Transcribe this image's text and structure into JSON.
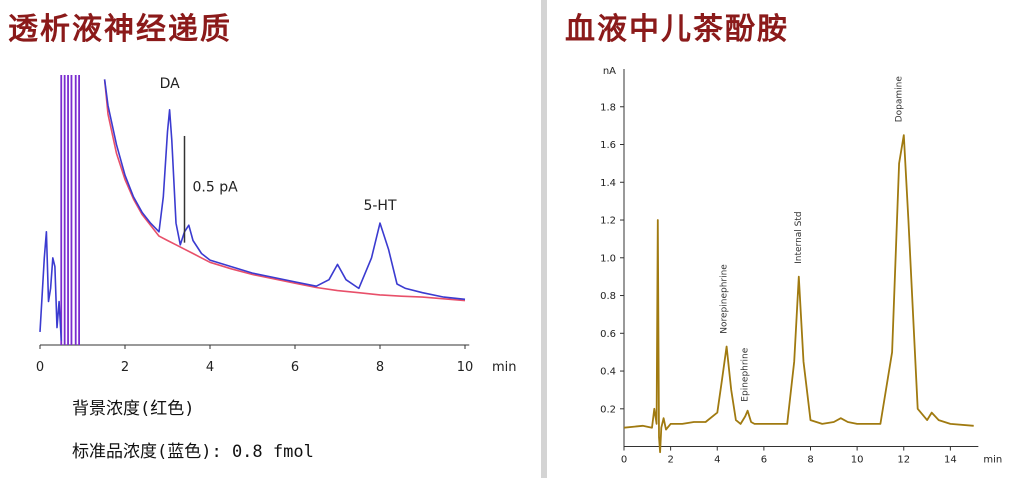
{
  "left_panel": {
    "title": "透析液神经递质",
    "caption_background": "背景浓度(红色)",
    "caption_standard": "标准品浓度(蓝色): 0.8 fmol"
  },
  "right_panel": {
    "title": "血液中儿茶酚胺"
  },
  "colors": {
    "title": "#8b1a1a",
    "background_trace": "#e8506a",
    "standard_trace": "#3b3bd0",
    "overload_lines": "#7a2ccf",
    "chromatogram": "#a07a10",
    "axis": "#333333"
  },
  "chart_data": [
    {
      "type": "line",
      "xlabel": "min",
      "x_ticks": [
        0,
        2,
        4,
        6,
        8,
        10
      ],
      "xlim": [
        0,
        10.4
      ],
      "ylim": [
        0,
        6.2
      ],
      "scale_bar": {
        "label": "0.5 pA",
        "x": 3.4,
        "y_bottom": 2.35,
        "y_top": 4.8
      },
      "peak_labels": [
        {
          "text": "DA",
          "x": 3.05,
          "y": 5.9
        },
        {
          "text": "5-HT",
          "x": 8.0,
          "y": 3.1
        }
      ],
      "saturated_x": [
        0.5,
        0.58,
        0.66,
        0.74,
        0.84,
        0.92
      ],
      "series": [
        {
          "name": "背景浓度(红色)",
          "color": "#e8506a",
          "x": [
            1.52,
            1.6,
            1.8,
            2.0,
            2.2,
            2.4,
            2.6,
            2.8,
            3.0,
            3.2,
            3.4,
            3.6,
            3.8,
            4.0,
            4.5,
            5.0,
            5.5,
            6.0,
            6.5,
            7.0,
            7.5,
            8.0,
            8.5,
            9.0,
            9.5,
            10.0
          ],
          "y": [
            6.1,
            5.3,
            4.4,
            3.8,
            3.35,
            3.0,
            2.75,
            2.5,
            2.4,
            2.3,
            2.2,
            2.1,
            2.0,
            1.9,
            1.75,
            1.62,
            1.52,
            1.42,
            1.32,
            1.25,
            1.2,
            1.15,
            1.12,
            1.1,
            1.06,
            1.02
          ]
        },
        {
          "name": "标准品浓度(蓝色)",
          "color": "#3b3bd0",
          "x": [
            0.0,
            0.1,
            0.15,
            0.2,
            0.25,
            0.3,
            0.35,
            0.4,
            0.45,
            0.5,
            1.52,
            1.6,
            1.8,
            2.0,
            2.2,
            2.4,
            2.6,
            2.8,
            2.9,
            3.0,
            3.05,
            3.1,
            3.2,
            3.3,
            3.4,
            3.5,
            3.6,
            3.8,
            4.0,
            4.5,
            5.0,
            5.5,
            6.0,
            6.5,
            6.8,
            7.0,
            7.2,
            7.5,
            7.8,
            8.0,
            8.2,
            8.4,
            8.6,
            9.0,
            9.5,
            10.0
          ],
          "y": [
            0.3,
            2.0,
            2.6,
            1.0,
            1.3,
            2.0,
            1.8,
            0.4,
            1.0,
            0.1,
            6.1,
            5.5,
            4.6,
            3.9,
            3.4,
            3.05,
            2.8,
            2.6,
            3.4,
            4.9,
            5.4,
            4.7,
            2.8,
            2.3,
            2.6,
            2.75,
            2.4,
            2.1,
            1.95,
            1.8,
            1.65,
            1.55,
            1.45,
            1.35,
            1.5,
            1.85,
            1.5,
            1.3,
            2.0,
            2.8,
            2.2,
            1.4,
            1.3,
            1.2,
            1.1,
            1.05
          ]
        }
      ]
    },
    {
      "type": "line",
      "xlabel": "min",
      "ylabel": "nA",
      "x_ticks": [
        0,
        2,
        4,
        6,
        8,
        10,
        12,
        14
      ],
      "y_ticks": [
        0.2,
        0.4,
        0.6,
        0.8,
        1.0,
        1.2,
        1.4,
        1.6,
        1.8
      ],
      "xlim": [
        0,
        16
      ],
      "ylim": [
        -0.05,
        2.0
      ],
      "peak_labels": [
        {
          "text": "Norepinephrine",
          "x": 4.4,
          "y": 0.55
        },
        {
          "text": "Epinephrine",
          "x": 5.3,
          "y": 0.19
        },
        {
          "text": "Internal Std",
          "x": 7.6,
          "y": 0.92
        },
        {
          "text": "Dopamine",
          "x": 11.9,
          "y": 1.67
        }
      ],
      "series": [
        {
          "color": "#a07a10",
          "x": [
            0.0,
            0.8,
            1.2,
            1.3,
            1.4,
            1.45,
            1.5,
            1.55,
            1.6,
            1.7,
            1.8,
            2.0,
            2.5,
            3.0,
            3.5,
            4.0,
            4.2,
            4.4,
            4.6,
            4.8,
            5.0,
            5.2,
            5.3,
            5.45,
            5.6,
            6.0,
            7.0,
            7.3,
            7.5,
            7.7,
            8.0,
            8.5,
            9.0,
            9.3,
            9.6,
            10.0,
            11.0,
            11.5,
            11.8,
            12.0,
            12.2,
            12.6,
            13.0,
            13.2,
            13.5,
            14.0,
            15.0
          ],
          "y": [
            0.1,
            0.11,
            0.1,
            0.2,
            0.12,
            1.2,
            0.05,
            -0.03,
            0.1,
            0.15,
            0.09,
            0.12,
            0.12,
            0.13,
            0.13,
            0.18,
            0.35,
            0.53,
            0.3,
            0.14,
            0.12,
            0.16,
            0.19,
            0.13,
            0.12,
            0.12,
            0.12,
            0.45,
            0.9,
            0.45,
            0.14,
            0.12,
            0.13,
            0.15,
            0.13,
            0.12,
            0.12,
            0.5,
            1.5,
            1.65,
            1.2,
            0.2,
            0.14,
            0.18,
            0.14,
            0.12,
            0.11
          ]
        }
      ]
    }
  ]
}
